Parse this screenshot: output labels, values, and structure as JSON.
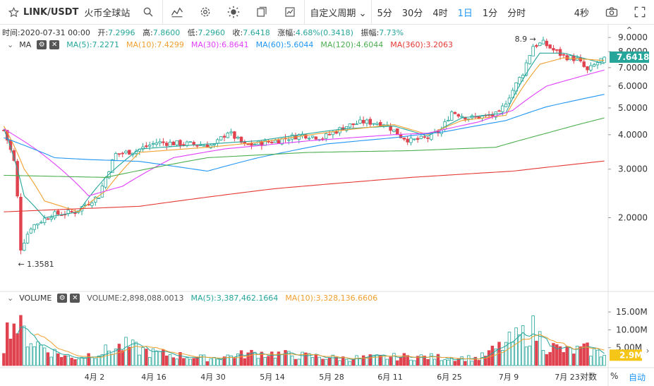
{
  "toolbar": {
    "symbol": "LINK/USDT",
    "exchange": "火币全球站",
    "custom_period": "自定义周期",
    "intervals": [
      "5分",
      "30分",
      "4时",
      "1日",
      "1分",
      "分时"
    ],
    "active_interval": "1日",
    "countdown": "4秒",
    "icons": [
      "star-icon",
      "search-icon",
      "indicators-icon",
      "settings-icon",
      "theme-icon",
      "compare-icon",
      "chart-type-icon",
      "camera-icon",
      "fullscreen-icon"
    ]
  },
  "ohlc": {
    "time_label": "时间:",
    "time": "2020-07-31 00:00",
    "open_label": "开:",
    "open": "7.2996",
    "high_label": "高:",
    "high": "7.8600",
    "low_label": "低:",
    "low": "7.2960",
    "close_label": "收:",
    "close": "7.6418",
    "change_label": "涨幅:",
    "change": "4.68%(0.3418)",
    "amplitude_label": "振幅:",
    "amplitude": "7.73%"
  },
  "ma_legend": {
    "name": "MA",
    "items": [
      {
        "label": "MA(5):7.2271",
        "color": "#26a69a"
      },
      {
        "label": "MA(10):7.4299",
        "color": "#f0a030"
      },
      {
        "label": "MA(30):6.8641",
        "color": "#e040fb"
      },
      {
        "label": "MA(60):5.6044",
        "color": "#2196f3"
      },
      {
        "label": "MA(120):4.6044",
        "color": "#4caf50"
      },
      {
        "label": "MA(360):3.2063",
        "color": "#e53935"
      }
    ]
  },
  "volume_legend": {
    "name": "VOLUME",
    "items": [
      {
        "label": "VOLUME:2,898,088.0013",
        "color": "#555555"
      },
      {
        "label": "MA(5):3,387,462.1664",
        "color": "#26a69a"
      },
      {
        "label": "MA(10):3,328,136.6606",
        "color": "#f0a030"
      }
    ]
  },
  "colors": {
    "up": "#26a69a",
    "down": "#e0434f",
    "price_label_bg": "#26a69a",
    "vol_label_bg": "#f5c518"
  },
  "bottom": {
    "percent": "%",
    "auto": "自动"
  },
  "chart_data": {
    "type": "candlestick",
    "title": "LINK/USDT 1日",
    "x_ticks": [
      "4月 2",
      "4月 16",
      "4月 30",
      "5月 14",
      "5月 28",
      "6月 11",
      "6月 25",
      "7月 9",
      "7月 23",
      "对数"
    ],
    "price_ticks": [
      "9.0000",
      "8.0000",
      "7.0000",
      "6.0000",
      "5.0000",
      "4.0000",
      "3.0000",
      "2.0000"
    ],
    "price_range": [
      1.1,
      9.5
    ],
    "last_price": "7.6418",
    "high_marker": "8.9",
    "low_marker": "1.3581",
    "ohlc_keypoints": [
      {
        "i": 0,
        "p": 4.15
      },
      {
        "i": 3,
        "p": 3.2
      },
      {
        "i": 5,
        "p": 1.55
      },
      {
        "i": 8,
        "p": 1.85
      },
      {
        "i": 14,
        "p": 2.05
      },
      {
        "i": 21,
        "p": 2.1
      },
      {
        "i": 28,
        "p": 2.4
      },
      {
        "i": 33,
        "p": 3.4
      },
      {
        "i": 39,
        "p": 3.5
      },
      {
        "i": 45,
        "p": 3.75
      },
      {
        "i": 55,
        "p": 3.7
      },
      {
        "i": 62,
        "p": 3.65
      },
      {
        "i": 66,
        "p": 4.1
      },
      {
        "i": 71,
        "p": 3.65
      },
      {
        "i": 80,
        "p": 3.8
      },
      {
        "i": 88,
        "p": 4.0
      },
      {
        "i": 94,
        "p": 3.9
      },
      {
        "i": 101,
        "p": 4.3
      },
      {
        "i": 106,
        "p": 4.45
      },
      {
        "i": 112,
        "p": 4.4
      },
      {
        "i": 117,
        "p": 3.95
      },
      {
        "i": 120,
        "p": 3.8
      },
      {
        "i": 125,
        "p": 3.9
      },
      {
        "i": 129,
        "p": 4.15
      },
      {
        "i": 132,
        "p": 4.85
      },
      {
        "i": 137,
        "p": 4.6
      },
      {
        "i": 142,
        "p": 4.65
      },
      {
        "i": 146,
        "p": 4.75
      },
      {
        "i": 150,
        "p": 5.8
      },
      {
        "i": 153,
        "p": 6.7
      },
      {
        "i": 156,
        "p": 8.4
      },
      {
        "i": 159,
        "p": 8.6
      },
      {
        "i": 162,
        "p": 8.1
      },
      {
        "i": 165,
        "p": 7.7
      },
      {
        "i": 169,
        "p": 7.5
      },
      {
        "i": 172,
        "p": 6.8
      },
      {
        "i": 175,
        "p": 7.3
      },
      {
        "i": 177,
        "p": 7.64
      }
    ],
    "ma_series": [
      {
        "name": "MA(5)",
        "points": [
          [
            0,
            4.2
          ],
          [
            6,
            2.4
          ],
          [
            12,
            2.0
          ],
          [
            22,
            2.1
          ],
          [
            30,
            2.8
          ],
          [
            40,
            3.55
          ],
          [
            60,
            3.7
          ],
          [
            75,
            3.8
          ],
          [
            100,
            4.2
          ],
          [
            115,
            4.3
          ],
          [
            125,
            3.95
          ],
          [
            135,
            4.6
          ],
          [
            148,
            4.8
          ],
          [
            158,
            7.9
          ],
          [
            165,
            7.9
          ],
          [
            177,
            7.23
          ]
        ]
      },
      {
        "name": "MA(10)",
        "points": [
          [
            0,
            4.3
          ],
          [
            6,
            3.0
          ],
          [
            12,
            2.3
          ],
          [
            22,
            2.1
          ],
          [
            30,
            2.5
          ],
          [
            40,
            3.45
          ],
          [
            60,
            3.6
          ],
          [
            75,
            3.75
          ],
          [
            100,
            4.15
          ],
          [
            115,
            4.35
          ],
          [
            125,
            4.0
          ],
          [
            135,
            4.5
          ],
          [
            148,
            4.7
          ],
          [
            158,
            7.2
          ],
          [
            165,
            7.6
          ],
          [
            177,
            7.43
          ]
        ]
      },
      {
        "name": "MA(30)",
        "points": [
          [
            0,
            4.2
          ],
          [
            10,
            3.5
          ],
          [
            25,
            2.4
          ],
          [
            35,
            2.6
          ],
          [
            50,
            3.3
          ],
          [
            65,
            3.55
          ],
          [
            90,
            3.8
          ],
          [
            115,
            4.0
          ],
          [
            125,
            4.05
          ],
          [
            140,
            4.45
          ],
          [
            150,
            4.9
          ],
          [
            160,
            6.0
          ],
          [
            170,
            6.5
          ],
          [
            177,
            6.86
          ]
        ]
      },
      {
        "name": "MA(60)",
        "points": [
          [
            0,
            3.9
          ],
          [
            15,
            3.3
          ],
          [
            25,
            3.25
          ],
          [
            40,
            3.2
          ],
          [
            60,
            2.95
          ],
          [
            75,
            3.3
          ],
          [
            95,
            3.7
          ],
          [
            115,
            3.9
          ],
          [
            130,
            4.1
          ],
          [
            148,
            4.5
          ],
          [
            160,
            5.05
          ],
          [
            177,
            5.6
          ]
        ]
      },
      {
        "name": "MA(120)",
        "points": [
          [
            0,
            2.85
          ],
          [
            30,
            2.8
          ],
          [
            60,
            3.3
          ],
          [
            90,
            3.45
          ],
          [
            120,
            3.5
          ],
          [
            145,
            3.6
          ],
          [
            160,
            4.05
          ],
          [
            177,
            4.6
          ]
        ]
      },
      {
        "name": "MA(360)",
        "points": [
          [
            0,
            2.1
          ],
          [
            40,
            2.2
          ],
          [
            80,
            2.55
          ],
          [
            120,
            2.8
          ],
          [
            150,
            2.95
          ],
          [
            177,
            3.21
          ]
        ]
      }
    ],
    "volume_ticks": [
      "15.00M",
      "10.00M",
      "5.00M"
    ],
    "volume_range": [
      0,
      17000000
    ],
    "volume_last": "2.9M",
    "volume_keypoints": [
      {
        "i": 0,
        "v": 6000000
      },
      {
        "i": 2,
        "v": 13000000
      },
      {
        "i": 6,
        "v": 9000000
      },
      {
        "i": 9,
        "v": 6500000
      },
      {
        "i": 14,
        "v": 4000000
      },
      {
        "i": 20,
        "v": 2000000
      },
      {
        "i": 32,
        "v": 4500000
      },
      {
        "i": 36,
        "v": 5500000
      },
      {
        "i": 44,
        "v": 3500000
      },
      {
        "i": 60,
        "v": 2000000
      },
      {
        "i": 75,
        "v": 3500000
      },
      {
        "i": 100,
        "v": 2000000
      },
      {
        "i": 120,
        "v": 2500000
      },
      {
        "i": 140,
        "v": 2000000
      },
      {
        "i": 150,
        "v": 7000000
      },
      {
        "i": 156,
        "v": 10000000
      },
      {
        "i": 160,
        "v": 5500000
      },
      {
        "i": 166,
        "v": 4000000
      },
      {
        "i": 172,
        "v": 4500000
      },
      {
        "i": 177,
        "v": 2900000
      }
    ]
  }
}
